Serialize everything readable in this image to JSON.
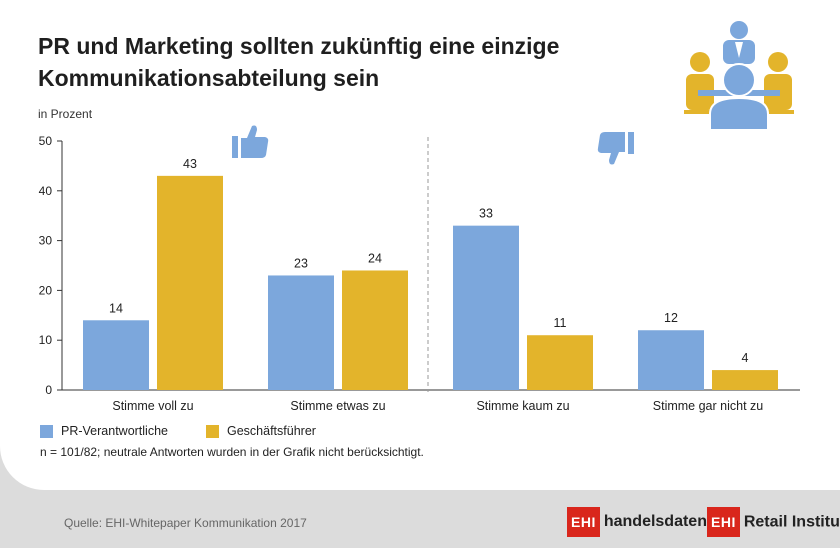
{
  "title": {
    "line1": "PR und Marketing sollten zukünftig eine einzige",
    "line2": "Kommunikationsabteilung sein"
  },
  "unit_label": "in Prozent",
  "chart_data": {
    "type": "bar",
    "title": "PR und Marketing sollten zukünftig eine einzige Kommunikationsabteilung sein",
    "ylabel": "in Prozent",
    "ylim": [
      0,
      50
    ],
    "yticks": [
      0,
      10,
      20,
      30,
      40,
      50
    ],
    "categories": [
      "Stimme voll zu",
      "Stimme etwas zu",
      "Stimme kaum zu",
      "Stimme gar nicht zu"
    ],
    "series": [
      {
        "name": "PR-Verantwortliche",
        "values": [
          14,
          23,
          33,
          12
        ],
        "color": "#7ca7dc"
      },
      {
        "name": "Geschäftsführer",
        "values": [
          43,
          24,
          11,
          4
        ],
        "color": "#e3b42b"
      }
    ],
    "grid": false,
    "legend": "bottom-left",
    "annotations": [
      "thumbs-up-icon over positive answers",
      "thumbs-down-icon over negative answers"
    ]
  },
  "legend": {
    "items": [
      {
        "label": "PR-Verantwortliche",
        "color": "#7ca7dc"
      },
      {
        "label": "Geschäftsführer",
        "color": "#e3b42b"
      }
    ]
  },
  "note": "n = 101/82; neutrale Antworten wurden in der Grafik nicht berücksichtigt.",
  "source": "Quelle: EHI-Whitepaper Kommunikation 2017",
  "logos": {
    "handelsdaten": {
      "box": "EHI",
      "text": "handelsdaten.de"
    },
    "retail": {
      "box": "EHI",
      "text": "Retail Institute",
      "mark": "®"
    }
  },
  "colors": {
    "blue": "#7ca7dc",
    "yellow": "#e3b42b",
    "red": "#d9261c"
  }
}
